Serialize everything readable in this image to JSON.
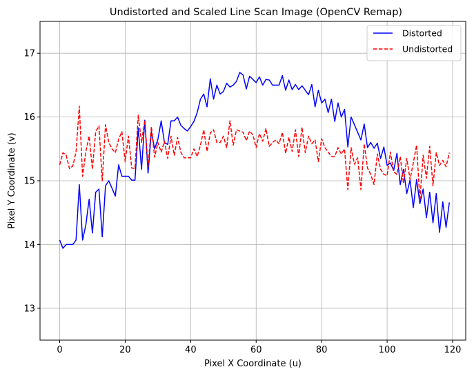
{
  "chart_data": {
    "type": "line",
    "title": "Undistorted and Scaled Line Scan Image (OpenCV Remap)",
    "xlabel": "Pixel X Coordinate (u)",
    "ylabel": "Pixel Y Coordinate (v)",
    "xlim": [
      -6,
      124
    ],
    "ylim": [
      12.5,
      17.5
    ],
    "xticks": [
      0,
      20,
      40,
      60,
      80,
      100,
      120
    ],
    "yticks": [
      13,
      14,
      15,
      16,
      17
    ],
    "grid": true,
    "legend_position": "top-right",
    "series": [
      {
        "name": "Distorted",
        "color": "#0000ff",
        "style": "solid",
        "x": [
          0,
          1,
          2,
          3,
          4,
          5,
          6,
          7,
          8,
          9,
          10,
          11,
          12,
          13,
          14,
          15,
          16,
          17,
          18,
          19,
          20,
          21,
          22,
          23,
          24,
          25,
          26,
          27,
          28,
          29,
          30,
          31,
          32,
          33,
          34,
          35,
          36,
          37,
          38,
          39,
          40,
          41,
          42,
          43,
          44,
          45,
          46,
          47,
          48,
          49,
          50,
          51,
          52,
          53,
          54,
          55,
          56,
          57,
          58,
          59,
          60,
          61,
          62,
          63,
          64,
          65,
          66,
          67,
          68,
          69,
          70,
          71,
          72,
          73,
          74,
          75,
          76,
          77,
          78,
          79,
          80,
          81,
          82,
          83,
          84,
          85,
          86,
          87,
          88,
          89,
          90,
          91,
          92,
          93,
          94,
          95,
          96,
          97,
          98,
          99,
          100,
          101,
          102,
          103,
          104,
          105,
          106,
          107,
          108,
          109,
          110,
          111,
          112,
          113,
          114,
          115,
          116,
          117,
          118,
          119
        ],
        "y": [
          14.07,
          13.94,
          14.0,
          14.0,
          14.0,
          14.07,
          14.94,
          14.07,
          14.31,
          14.71,
          14.18,
          14.82,
          14.87,
          14.12,
          14.92,
          15.0,
          14.88,
          14.76,
          15.25,
          15.07,
          15.07,
          15.07,
          15.01,
          15.01,
          15.83,
          15.18,
          15.95,
          15.12,
          15.77,
          15.5,
          15.65,
          15.94,
          15.6,
          15.57,
          15.94,
          15.94,
          16.0,
          15.87,
          15.82,
          15.78,
          15.85,
          15.93,
          16.07,
          16.28,
          16.36,
          16.16,
          16.6,
          16.28,
          16.5,
          16.36,
          16.4,
          16.53,
          16.47,
          16.5,
          16.56,
          16.7,
          16.66,
          16.44,
          16.64,
          16.59,
          16.54,
          16.63,
          16.5,
          16.59,
          16.58,
          16.5,
          16.5,
          16.5,
          16.65,
          16.42,
          16.58,
          16.43,
          16.51,
          16.43,
          16.49,
          16.42,
          16.35,
          16.51,
          16.16,
          16.42,
          16.22,
          16.28,
          16.07,
          16.28,
          15.93,
          16.22,
          16.0,
          16.12,
          15.53,
          16.0,
          15.88,
          15.76,
          15.64,
          15.89,
          15.52,
          15.6,
          15.51,
          15.59,
          15.35,
          15.53,
          15.24,
          15.28,
          15.16,
          15.43,
          14.94,
          15.18,
          14.8,
          15.01,
          14.58,
          15.02,
          14.64,
          14.87,
          14.42,
          14.82,
          14.34,
          14.8,
          14.19,
          14.67,
          14.27,
          14.66
        ]
      },
      {
        "name": "Undistorted",
        "color": "#ff0000",
        "style": "dashed",
        "x": [
          0,
          1,
          2,
          3,
          4,
          5,
          6,
          7,
          8,
          9,
          10,
          11,
          12,
          13,
          14,
          15,
          16,
          17,
          18,
          19,
          20,
          21,
          22,
          23,
          24,
          25,
          26,
          27,
          28,
          29,
          30,
          31,
          32,
          33,
          34,
          35,
          36,
          37,
          38,
          39,
          40,
          41,
          42,
          43,
          44,
          45,
          46,
          47,
          48,
          49,
          50,
          51,
          52,
          53,
          54,
          55,
          56,
          57,
          58,
          59,
          60,
          61,
          62,
          63,
          64,
          65,
          66,
          67,
          68,
          69,
          70,
          71,
          72,
          73,
          74,
          75,
          76,
          77,
          78,
          79,
          80,
          81,
          82,
          83,
          84,
          85,
          86,
          87,
          88,
          89,
          90,
          91,
          92,
          93,
          94,
          95,
          96,
          97,
          98,
          99,
          100,
          101,
          102,
          103,
          104,
          105,
          106,
          107,
          108,
          109,
          110,
          111,
          112,
          113,
          114,
          115,
          116,
          117,
          118,
          119
        ],
        "y": [
          15.25,
          15.44,
          15.4,
          15.19,
          15.23,
          15.45,
          16.17,
          15.07,
          15.46,
          15.7,
          15.18,
          15.77,
          15.86,
          15.0,
          15.88,
          15.6,
          15.5,
          15.44,
          15.65,
          15.77,
          15.3,
          15.7,
          15.2,
          15.19,
          16.03,
          15.6,
          15.95,
          15.22,
          15.85,
          15.37,
          15.6,
          15.45,
          15.62,
          15.35,
          15.7,
          15.4,
          15.68,
          15.45,
          15.36,
          15.36,
          15.36,
          15.5,
          15.38,
          15.56,
          15.8,
          15.46,
          15.75,
          15.8,
          15.6,
          15.6,
          15.7,
          15.52,
          15.94,
          15.56,
          15.8,
          15.78,
          15.76,
          15.63,
          15.78,
          15.72,
          15.52,
          15.74,
          15.62,
          15.82,
          15.54,
          15.6,
          15.64,
          15.58,
          15.76,
          15.43,
          15.68,
          15.46,
          15.8,
          15.38,
          15.84,
          15.44,
          15.7,
          15.58,
          15.64,
          15.3,
          15.66,
          15.52,
          15.45,
          15.38,
          15.38,
          15.52,
          15.42,
          15.5,
          14.86,
          15.52,
          15.26,
          15.36,
          14.86,
          15.58,
          15.2,
          15.1,
          14.94,
          15.42,
          15.18,
          15.1,
          15.08,
          15.45,
          15.14,
          15.1,
          15.38,
          14.96,
          15.35,
          15.02,
          15.28,
          15.56,
          14.7,
          15.4,
          15.04,
          15.54,
          14.92,
          15.44,
          15.24,
          15.32,
          15.22,
          15.44
        ]
      }
    ]
  }
}
